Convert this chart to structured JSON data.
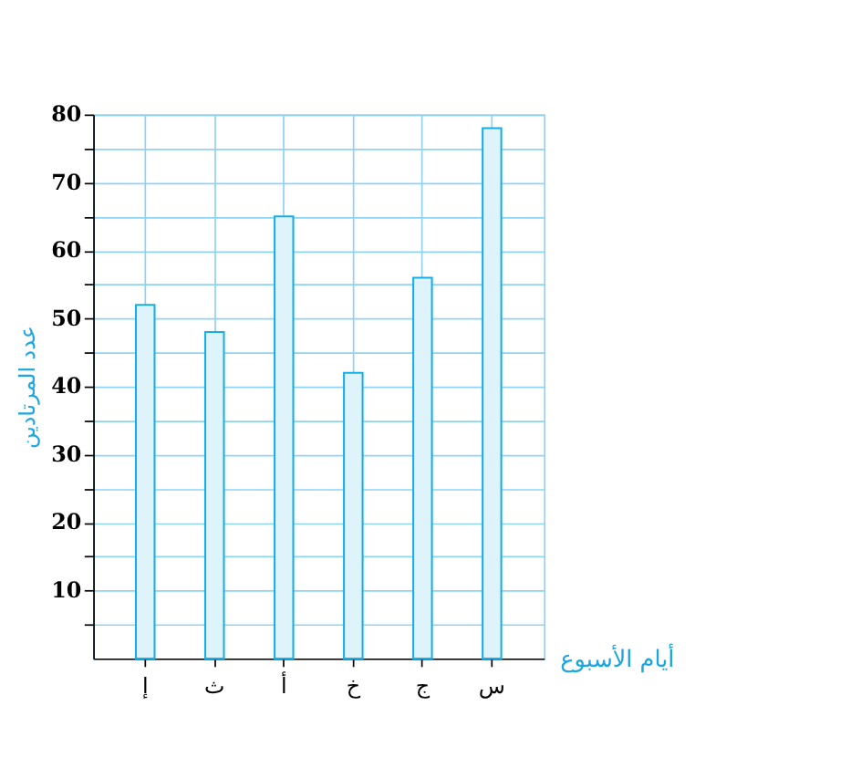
{
  "chart_data": {
    "type": "bar",
    "xlabel": "أيام الأسبوع",
    "ylabel": "عدد المرتادين",
    "categories": [
      "إ",
      "ث",
      "أ",
      "خ",
      "ج",
      "س"
    ],
    "values": [
      52,
      48,
      65,
      42,
      56,
      78
    ],
    "color": "#dff3fb",
    "ylim": [
      0,
      80
    ],
    "yticks": [
      {
        "value": 5,
        "label": null
      },
      10,
      {
        "value": 15,
        "label": null
      },
      20,
      {
        "value": 25,
        "label": null
      },
      30,
      {
        "value": 35,
        "label": null
      },
      40,
      {
        "value": 45,
        "label": null
      },
      50,
      {
        "value": 55,
        "label": null
      },
      60,
      {
        "value": 65,
        "label": null
      },
      70,
      {
        "value": 75,
        "label": null
      },
      80
    ],
    "grid": true
  }
}
